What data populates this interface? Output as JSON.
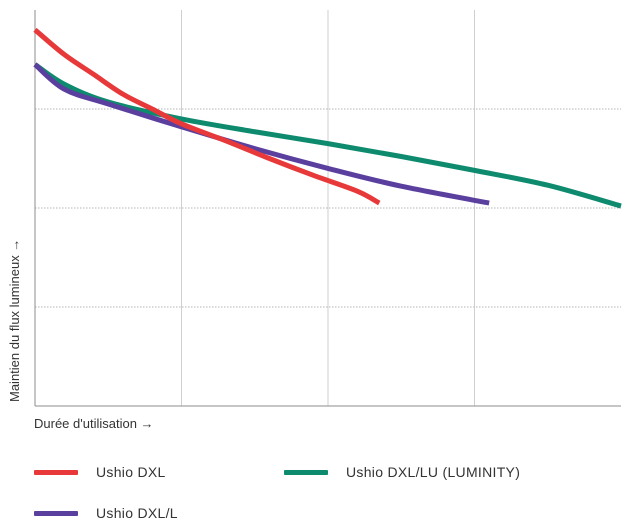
{
  "chart_data": {
    "type": "line",
    "xlabel": "Durée d'utilisation →",
    "ylabel": "Maintien du flux lumineux →",
    "xlim": [
      0,
      4
    ],
    "ylim": [
      0,
      4
    ],
    "grid": true,
    "legend_placement": "bottom",
    "series": [
      {
        "name": "Ushio DXL",
        "color": "#e8393a",
        "x": [
          0,
          0.2,
          0.4,
          0.6,
          0.8,
          1.0,
          1.3,
          1.6,
          1.9,
          2.2,
          2.35
        ],
        "y": [
          3.8,
          3.55,
          3.35,
          3.15,
          3.0,
          2.85,
          2.68,
          2.5,
          2.33,
          2.17,
          2.05
        ]
      },
      {
        "name": "Ushio DXL/LU (LUMINITY)",
        "color": "#0e8b6e",
        "x": [
          0,
          0.2,
          0.5,
          1.0,
          1.5,
          2.0,
          2.5,
          3.0,
          3.5,
          4.0
        ],
        "y": [
          3.45,
          3.25,
          3.07,
          2.9,
          2.77,
          2.65,
          2.52,
          2.38,
          2.23,
          2.02
        ]
      },
      {
        "name": "Ushio DXL/L",
        "color": "#5b3f9e",
        "x": [
          0,
          0.2,
          0.5,
          1.0,
          1.5,
          2.0,
          2.5,
          3.1
        ],
        "y": [
          3.45,
          3.2,
          3.05,
          2.82,
          2.6,
          2.4,
          2.22,
          2.05
        ]
      }
    ]
  }
}
